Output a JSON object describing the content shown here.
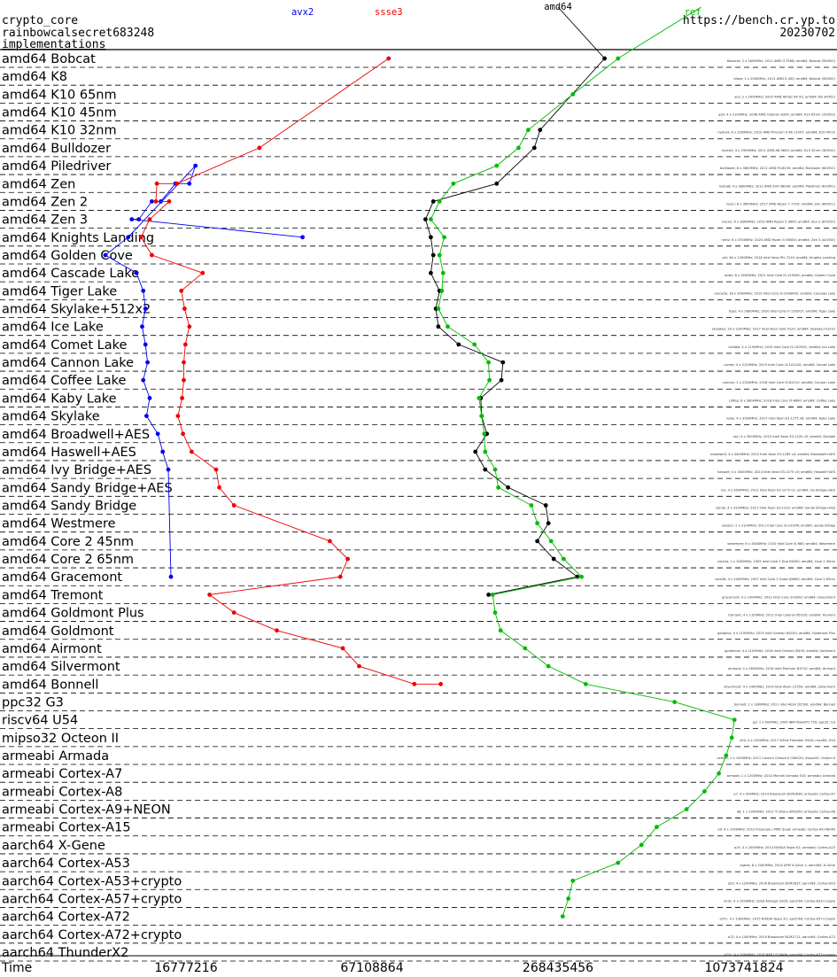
{
  "header": {
    "primitive": "crypto_core",
    "name": "rainbowcalsecret683248",
    "implementations": "implementations",
    "site": "https://bench.cr.yp.to",
    "date": "20230702"
  },
  "chart_data": {
    "type": "line",
    "x_scale": "log2",
    "xlim": [
      4194304,
      2147483648
    ],
    "xlabel": "Time",
    "x_ticks": [
      "16777216",
      "67108864",
      "268435456",
      "1073741824"
    ],
    "categories": [
      "amd64 Bobcat",
      "amd64 K8",
      "amd64 K10 65nm",
      "amd64 K10 45nm",
      "amd64 K10 32nm",
      "amd64 Bulldozer",
      "amd64 Piledriver",
      "amd64 Zen",
      "amd64 Zen 2",
      "amd64 Zen 3",
      "amd64 Knights Landing",
      "amd64 Golden Cove",
      "amd64 Cascade Lake",
      "amd64 Tiger Lake",
      "amd64 Skylake+512x2",
      "amd64 Ice Lake",
      "amd64 Comet Lake",
      "amd64 Cannon Lake",
      "amd64 Coffee Lake",
      "amd64 Kaby Lake",
      "amd64 Skylake",
      "amd64 Broadwell+AES",
      "amd64 Haswell+AES",
      "amd64 Ivy Bridge+AES",
      "amd64 Sandy Bridge+AES",
      "amd64 Sandy Bridge",
      "amd64 Westmere",
      "amd64 Core 2 45nm",
      "amd64 Core 2 65nm",
      "amd64 Gracemont",
      "amd64 Tremont",
      "amd64 Goldmont Plus",
      "amd64 Goldmont",
      "amd64 Airmont",
      "amd64 Silvermont",
      "amd64 Bonnell",
      "ppc32 G3",
      "riscv64 U54",
      "mipso32 Octeon II",
      "armeabi Armada",
      "armeabi Cortex-A7",
      "armeabi Cortex-A8",
      "armeabi Cortex-A9+NEON",
      "armeabi Cortex-A15",
      "aarch64 X-Gene",
      "aarch64 Cortex-A53",
      "aarch64 Cortex-A53+crypto",
      "aarch64 Cortex-A57+crypto",
      "aarch64 Cortex-A72",
      "aarch64 Cortex-A72+crypto",
      "aarch64 ThunderX2"
    ],
    "series": [
      {
        "name": "avx2",
        "color": "#0000ee",
        "points": [
          [
            10,
            40000000
          ],
          [
            9,
            11200000
          ],
          [
            9,
            11800000
          ],
          [
            8,
            13000000
          ],
          [
            8,
            13900000
          ],
          [
            7,
            15500000
          ],
          [
            7,
            17200000
          ],
          [
            6,
            18000000
          ],
          [
            10,
            10900000
          ],
          [
            11,
            9200000
          ],
          [
            12,
            11600000
          ],
          [
            13,
            12200000
          ],
          [
            14,
            12400000
          ],
          [
            15,
            12100000
          ],
          [
            16,
            12400000
          ],
          [
            17,
            12600000
          ],
          [
            18,
            12200000
          ],
          [
            19,
            12800000
          ],
          [
            20,
            12500000
          ],
          [
            21,
            13600000
          ],
          [
            22,
            14100000
          ],
          [
            23,
            14700000
          ],
          [
            29,
            15000000
          ]
        ]
      },
      {
        "name": "ssse3",
        "color": "#ee0000",
        "points": [
          [
            0,
            76000000
          ],
          [
            5,
            29000000
          ],
          [
            7,
            15700000
          ],
          [
            7,
            13500000
          ],
          [
            8,
            13400000
          ],
          [
            8,
            14800000
          ],
          [
            9,
            12800000
          ],
          [
            10,
            12000000
          ],
          [
            11,
            13000000
          ],
          [
            12,
            19000000
          ],
          [
            13,
            16200000
          ],
          [
            14,
            16600000
          ],
          [
            15,
            17200000
          ],
          [
            16,
            16700000
          ],
          [
            17,
            16500000
          ],
          [
            18,
            16500000
          ],
          [
            19,
            16300000
          ],
          [
            20,
            15800000
          ],
          [
            21,
            16400000
          ],
          [
            22,
            17500000
          ],
          [
            23,
            21000000
          ],
          [
            24,
            21500000
          ],
          [
            25,
            24000000
          ],
          [
            27,
            49000000
          ],
          [
            28,
            56000000
          ],
          [
            29,
            53000000
          ],
          [
            30,
            20000000
          ],
          [
            31,
            24000000
          ],
          [
            32,
            33000000
          ],
          [
            33,
            54000000
          ],
          [
            34,
            61000000
          ],
          [
            35,
            92000000
          ],
          [
            35,
            112000000
          ]
        ]
      },
      {
        "name": "amd64",
        "color": "#000000",
        "points": [
          [
            -2,
            268435456
          ],
          [
            0,
            380000000
          ],
          [
            4,
            235000000
          ],
          [
            5,
            225000000
          ],
          [
            7,
            170000000
          ],
          [
            8,
            106000000
          ],
          [
            9,
            100000000
          ],
          [
            10,
            104000000
          ],
          [
            11,
            106000000
          ],
          [
            12,
            104000000
          ],
          [
            13,
            111000000
          ],
          [
            14,
            108000000
          ],
          [
            15,
            110000000
          ],
          [
            16,
            128000000
          ],
          [
            17,
            178000000
          ],
          [
            18,
            176000000
          ],
          [
            19,
            151000000
          ],
          [
            20,
            152000000
          ],
          [
            21,
            158000000
          ],
          [
            22,
            145000000
          ],
          [
            23,
            156000000
          ],
          [
            24,
            185000000
          ],
          [
            25,
            245000000
          ],
          [
            26,
            250000000
          ],
          [
            27,
            230000000
          ],
          [
            28,
            260000000
          ],
          [
            29,
            310000000
          ],
          [
            30,
            160000000
          ]
        ]
      },
      {
        "name": "ref",
        "color": "#00bb00",
        "points": [
          [
            -2,
            780000000
          ],
          [
            0,
            420000000
          ],
          [
            2,
            300000000
          ],
          [
            4,
            215000000
          ],
          [
            5,
            200000000
          ],
          [
            6,
            170000000
          ],
          [
            7,
            123000000
          ],
          [
            8,
            111000000
          ],
          [
            9,
            104000000
          ],
          [
            10,
            115000000
          ],
          [
            11,
            111000000
          ],
          [
            12,
            114000000
          ],
          [
            13,
            113000000
          ],
          [
            14,
            110000000
          ],
          [
            15,
            118000000
          ],
          [
            16,
            144000000
          ],
          [
            17,
            160000000
          ],
          [
            18,
            161000000
          ],
          [
            19,
            149000000
          ],
          [
            20,
            152000000
          ],
          [
            21,
            155000000
          ],
          [
            22,
            156000000
          ],
          [
            23,
            168000000
          ],
          [
            24,
            172000000
          ],
          [
            25,
            220000000
          ],
          [
            26,
            230000000
          ],
          [
            27,
            255000000
          ],
          [
            28,
            280000000
          ],
          [
            29,
            320000000
          ],
          [
            30,
            165000000
          ],
          [
            31,
            168000000
          ],
          [
            32,
            175000000
          ],
          [
            33,
            210000000
          ],
          [
            34,
            250000000
          ],
          [
            35,
            330000000
          ],
          [
            36,
            640000000
          ],
          [
            37,
            1000000000
          ],
          [
            38,
            980000000
          ],
          [
            39,
            940000000
          ],
          [
            40,
            890000000
          ],
          [
            41,
            800000000
          ],
          [
            42,
            700000000
          ],
          [
            43,
            560000000
          ],
          [
            44,
            500000000
          ],
          [
            45,
            420000000
          ],
          [
            46,
            300000000
          ],
          [
            47,
            290000000
          ],
          [
            48,
            278000000
          ]
        ]
      }
    ],
    "row_notes": [
      "bbobcat; 2 x 1600MHz; 2011 AMD G-T56N; amd64; Bobcat (500f20)",
      "blaze; 2 x 2000MHz; 2011 AMD E-450; amd64; Bobcat (500f20)",
      "ace; 2 x 2000MHz; 2005 AMD Athlon 64 X2; amd64; K8 (40f52)",
      "goil; 4 x 2100MHz; 2008 AMD Opteron 8354; amd64; K10 65nm (100f23)",
      "hydra4; 6 x 3300MHz; 2010 AMD Phenom II X6 1100T; amd64; K10 45nm",
      "hydra5; 4 x 2900MHz; 2011 AMD A6-3650; amd64; K10 32nm (300f10)",
      "bulldozer; 8 x 3600MHz; 2011 AMD FX-8150; amd64; Bulldozer (600f12)",
      "hydra8; 4 x 3800MHz; 2012 AMD A10-5800K; amd64; Piledriver (610f01)",
      "ryzen; 8 x 3600MHz; 2017 AMD Ryzen 7 1700; amd64; Zen (800f11)",
      "bacon; 6 x 3600MHz; 2019 AMD Ryzen 5 3600; amd64; Zen 2 (870f10)",
      "hertz; 6 x 3700MHz; 2020 AMD Ryzen 5 5600X; amd64; Zen 3 (a20f10)",
      "phi; 64 x 1300MHz; 2016 Intel Xeon Phi 7210; amd64; Knights Landing",
      "alder; 8 x 3200MHz; 2021 Intel Core i9-12900K; amd64; Golden Cove",
      "cascade; 18 x 3000MHz; 2019 Intel Core i9-10980XE; amd64; Cascade Lake",
      "tiger; 4 x 2800MHz; 2020 Intel Core i7-1165G7; amd64; Tiger Lake",
      "skylakex; 20 x 2200MHz; 2017 Intel Xeon Gold 5120; amd64; Skylake+512x2",
      "icelake; 4 x 1100MHz; 2019 Intel Core i3-1005G1; amd64; Ice Lake",
      "comet; 4 x 2100MHz; 2019 Intel Core i3-10110U; amd64; Comet Lake",
      "cannon; 2 x 2200MHz; 2018 Intel Core i3-8121U; amd64; Cannon Lake",
      "coffee; 6 x 3600MHz; 2018 Intel Core i5-8600; amd64; Coffee Lake",
      "kaby; 4 x 3500MHz; 2017 Intel Xeon E3-1275 v6; amd64; Kaby Lake",
      "sky; 4 x 3500MHz; 2015 Intel Xeon E3-1220 v5; amd64; Skylake",
      "broadwell; 4 x 3400MHz; 2015 Intel Xeon E3-1285 v4; amd64; Broadwell+AES",
      "haswell; 4 x 3400MHz; 2014 Intel Xeon E3-1275 v3; amd64; Haswell+AES",
      "ivy; 4 x 3500MHz; 2012 Intel Xeon E3-1275 v2; amd64; Ivy Bridge+AES",
      "sandy; 4 x 3100MHz; 2011 Intel Xeon E3-1220; amd64; Sandy Bridge+AES",
      "sandy2; 2 x 2100MHz; 2011 Intel Core i3-2310M; amd64; Sandy Bridge",
      "westmere; 6 x 3300MHz; 2010 Intel Core i5-660; amd64; Westmere",
      "core2a; 2 x 3000MHz; 2009 Intel Core 2 Duo E8400; amd64; Core 2 45nm",
      "core2b; 4 x 2400MHz; 2007 Intel Core 2 Quad Q6600; amd64; Core 2 65nm",
      "gracemont; 4 x 1000MHz; 2022 Intel Core i3-N300; amd64; Gracemont",
      "tremont; 4 x 1100MHz; 2021 Intel Celeron N5105; amd64; Tremont",
      "goldplus; 4 x 1100MHz; 2019 Intel Celeron N4100; amd64; Goldmont Plus",
      "goldmont; 4 x 1100MHz; 2016 Intel Celeron J3455; amd64; Goldmont",
      "airmont; 4 x 1600MHz; 2016 Intel Pentium N3710; amd64; Airmont",
      "silvermont; 4 x 2400MHz; 2014 Intel Atom C2550; amd64; Silvermont",
      "bonnell; 2 x 1800MHz; 2011 Intel Atom D2500; amd64; Bonnell",
      "g3; 1 x 500MHz; 2000 IBM PowerPC 750; ppc32; G3",
      "u54; 4 x 1000MHz; 2017 SiFive Freedom U540; riscv64; U54",
      "octeon; 2 x 1000MHz; 2011 Cavium Octeon II CN6120; mipso32; Octeon II",
      "armada; 1 x 1200MHz; 2010 Marvell Armada 510; armeabi; Armada",
      "a7; 4 x 900MHz; 2014 Broadcom BCM2836; armeabi; Cortex-A7",
      "a8; 1 x 1000MHz; 2012 TI Sitara AM3359; armeabi; Cortex-A8",
      "a9; 4 x 1000MHz; 2012 Freescale i.MX6 Quad; armeabi; Cortex-A9+NEON",
      "a15; 4 x 2000MHz; 2014 NVIDIA Tegra K1; armeabi; Cortex-A15",
      "xgene; 8 x 2400MHz; 2014 APM X-Gene 1; aarch64; X-Gene",
      "a53; 4 x 1200MHz; 2016 Broadcom BCM2837; aarch64; Cortex-A53",
      "a53c; 4 x 1500MHz; 2018 Amlogic S905; aarch64; Cortex-A53+crypto",
      "a57c; 4 x 1900MHz; 2015 NVIDIA Tegra X1; aarch64; Cortex-A57+crypto",
      "a72; 4 x 1500MHz; 2019 Broadcom BCM2711; aarch64; Cortex-A72",
      "a72c; 4 x 2000MHz; 2018 NXP LS1046A; aarch64; Cortex-A72+crypto",
      "thunderx2; 64 x 2500MHz; 2018 Cavium ThunderX2; aarch64; ThunderX2"
    ]
  }
}
